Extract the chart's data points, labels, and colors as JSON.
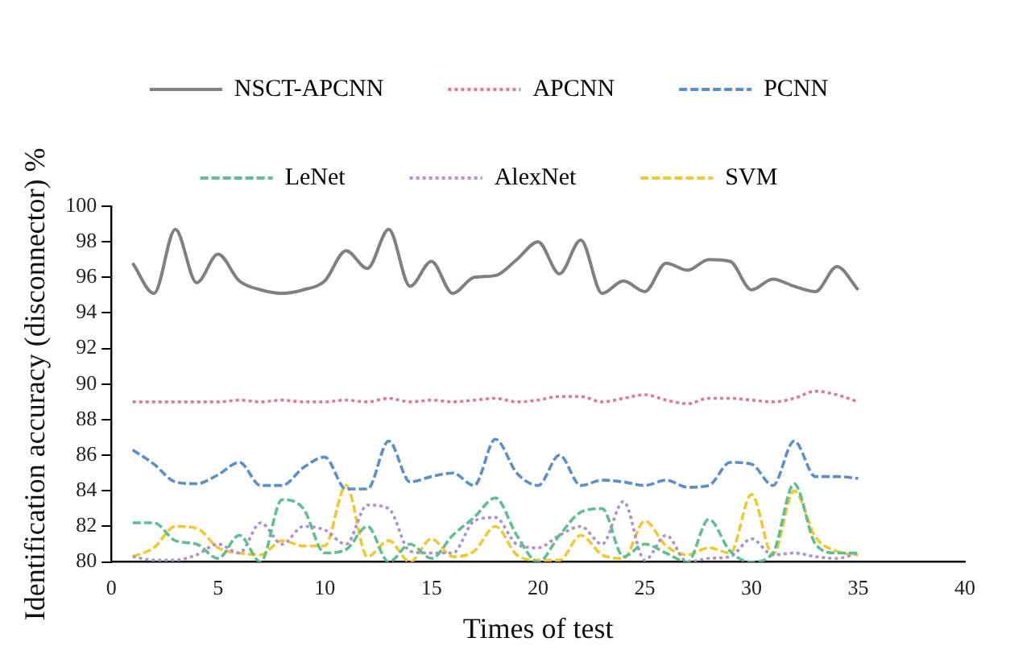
{
  "chart_data": {
    "type": "line",
    "xlabel": "Times of test",
    "ylabel": "Identification accuracy (disconnector) %",
    "x": [
      1,
      2,
      3,
      4,
      5,
      6,
      7,
      8,
      9,
      10,
      11,
      12,
      13,
      14,
      15,
      16,
      17,
      18,
      19,
      20,
      21,
      22,
      23,
      24,
      25,
      26,
      27,
      28,
      29,
      30,
      31,
      32,
      33,
      34,
      35
    ],
    "xlim": [
      0,
      40
    ],
    "xticks": [
      0,
      5,
      10,
      15,
      20,
      25,
      30,
      35,
      40
    ],
    "ylim": [
      80,
      100
    ],
    "yticks": [
      80,
      82,
      84,
      86,
      88,
      90,
      92,
      94,
      96,
      98,
      100
    ],
    "grid": false,
    "legend": "top",
    "marker": "none",
    "series": [
      {
        "name": "NSCT-APCNN",
        "color": "#808080",
        "line_style": "solid",
        "values": [
          96.8,
          95.1,
          98.7,
          95.7,
          97.3,
          95.8,
          95.3,
          95.1,
          95.3,
          95.8,
          97.5,
          96.5,
          98.7,
          95.5,
          96.9,
          95.1,
          96.0,
          96.1,
          97.0,
          98.0,
          96.2,
          98.1,
          95.1,
          95.8,
          95.2,
          96.8,
          96.4,
          97.0,
          96.9,
          95.3,
          95.9,
          95.5,
          95.2,
          96.6,
          95.3
        ]
      },
      {
        "name": "APCNN",
        "color": "#e07a8a",
        "line_style": "dotted",
        "values": [
          89.0,
          89.0,
          89.0,
          89.0,
          89.0,
          89.1,
          89.0,
          89.1,
          89.0,
          89.0,
          89.1,
          89.0,
          89.2,
          89.0,
          89.1,
          89.0,
          89.1,
          89.2,
          89.0,
          89.1,
          89.3,
          89.3,
          89.0,
          89.2,
          89.4,
          89.1,
          88.9,
          89.2,
          89.2,
          89.1,
          89.0,
          89.2,
          89.6,
          89.4,
          89.0
        ]
      },
      {
        "name": "PCNN",
        "color": "#5b8fc9",
        "line_style": "dashed",
        "values": [
          86.3,
          85.5,
          84.5,
          84.4,
          84.9,
          85.6,
          84.3,
          84.3,
          85.3,
          85.9,
          84.1,
          84.1,
          86.8,
          84.5,
          84.8,
          85.0,
          84.3,
          86.9,
          85.0,
          84.3,
          86.0,
          84.3,
          84.6,
          84.5,
          84.3,
          84.6,
          84.2,
          84.3,
          85.6,
          85.5,
          84.3,
          86.8,
          84.8,
          84.8,
          84.7
        ]
      },
      {
        "name": "LeNet",
        "color": "#5fbf8f",
        "line_style": "dashed",
        "values": [
          82.2,
          82.2,
          81.2,
          81.0,
          80.2,
          81.5,
          80.0,
          83.5,
          83.0,
          80.5,
          80.7,
          82.0,
          80.0,
          81.0,
          80.2,
          81.5,
          82.5,
          83.6,
          81.5,
          80.0,
          81.5,
          82.8,
          83.0,
          80.3,
          81.0,
          80.5,
          80.0,
          82.4,
          80.6,
          80.0,
          80.5,
          84.4,
          81.0,
          80.5,
          80.5
        ]
      },
      {
        "name": "AlexNet",
        "color": "#b08fd0",
        "line_style": "dotted",
        "values": [
          80.3,
          80.1,
          80.1,
          80.4,
          81.0,
          80.5,
          82.2,
          81.0,
          82.0,
          81.8,
          81.0,
          83.2,
          83.0,
          80.6,
          80.5,
          80.5,
          82.3,
          82.5,
          81.0,
          80.8,
          81.5,
          82.0,
          81.0,
          83.4,
          80.1,
          81.5,
          80.0,
          80.2,
          80.3,
          81.3,
          80.4,
          80.5,
          80.3,
          80.2,
          80.5
        ]
      },
      {
        "name": "SVM",
        "color": "#f0c830",
        "line_style": "dashed",
        "values": [
          80.3,
          80.8,
          82.0,
          81.9,
          80.8,
          80.5,
          80.4,
          81.2,
          80.9,
          80.9,
          84.3,
          80.3,
          81.2,
          80.0,
          81.3,
          80.3,
          80.6,
          82.0,
          80.4,
          80.1,
          80.1,
          81.5,
          80.4,
          80.2,
          82.3,
          80.9,
          80.4,
          80.8,
          80.5,
          83.8,
          80.4,
          84.0,
          81.4,
          80.6,
          80.4
        ]
      }
    ]
  }
}
